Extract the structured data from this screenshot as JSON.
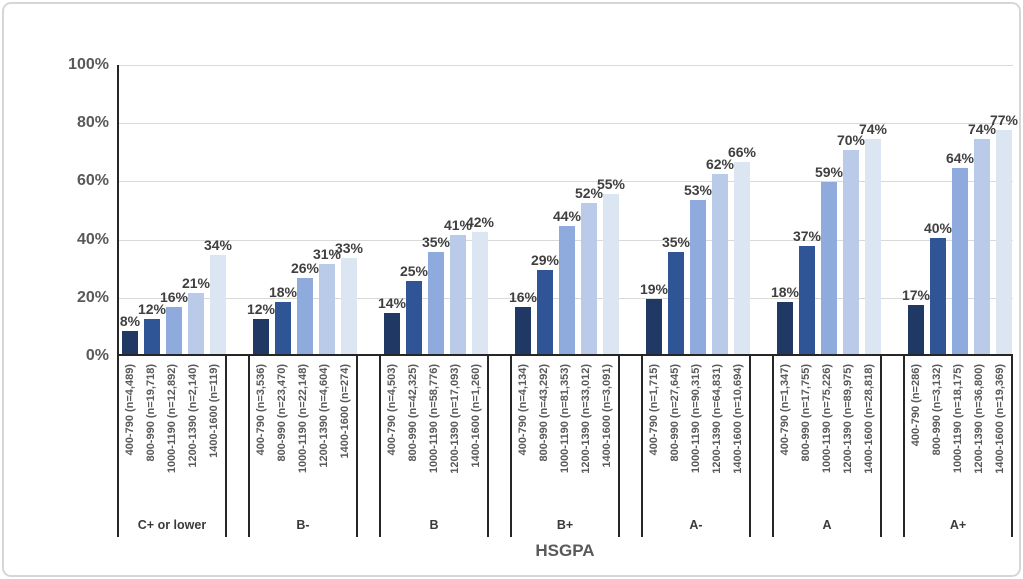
{
  "chart_data": {
    "type": "bar",
    "title": "",
    "xlabel": "HSGPA",
    "ylabel": "",
    "ylim": [
      0,
      100
    ],
    "ytick_values": [
      100,
      80,
      60,
      40,
      20,
      0
    ],
    "ytick_labels": [
      "100%",
      "80%",
      "60%",
      "40%",
      "20%",
      "0%"
    ],
    "grid": true,
    "legend_position": "none",
    "series_bands": [
      "400-790",
      "800-990",
      "1000-1190",
      "1200-1390",
      "1400-1600"
    ],
    "series_colors": [
      "#1F3864",
      "#2F5597",
      "#8FAADC",
      "#B9CBE8",
      "#DCE5F2"
    ],
    "axis_color": "#262626",
    "gridline_color": "#D9D9D9",
    "groups": [
      {
        "label": "C+ or lower",
        "bars": [
          {
            "category": "400-790 (n=4,489)",
            "value": 8,
            "value_label": "8%"
          },
          {
            "category": "800-990 (n=19,718)",
            "value": 12,
            "value_label": "12%"
          },
          {
            "category": "1000-1190 (n=12,892)",
            "value": 16,
            "value_label": "16%"
          },
          {
            "category": "1200-1390 (n=2,140)",
            "value": 21,
            "value_label": "21%"
          },
          {
            "category": "1400-1600 (n=119)",
            "value": 34,
            "value_label": "34%"
          }
        ]
      },
      {
        "label": "B-",
        "bars": [
          {
            "category": "400-790 (n=3,536)",
            "value": 12,
            "value_label": "12%"
          },
          {
            "category": "800-990 (n=23,470)",
            "value": 18,
            "value_label": "18%"
          },
          {
            "category": "1000-1190 (n=22,148)",
            "value": 26,
            "value_label": "26%"
          },
          {
            "category": "1200-1390 (n=4,604)",
            "value": 31,
            "value_label": "31%"
          },
          {
            "category": "1400-1600 (n=274)",
            "value": 33,
            "value_label": "33%"
          }
        ]
      },
      {
        "label": "B",
        "bars": [
          {
            "category": "400-790 (n=4,503)",
            "value": 14,
            "value_label": "14%"
          },
          {
            "category": "800-990 (n=42,325)",
            "value": 25,
            "value_label": "25%"
          },
          {
            "category": "1000-1190 (n=58,776)",
            "value": 35,
            "value_label": "35%"
          },
          {
            "category": "1200-1390 (n=17,093)",
            "value": 41,
            "value_label": "41%"
          },
          {
            "category": "1400-1600 (n=1,260)",
            "value": 42,
            "value_label": "42%"
          }
        ]
      },
      {
        "label": "B+",
        "bars": [
          {
            "category": "400-790 (n=4,134)",
            "value": 16,
            "value_label": "16%"
          },
          {
            "category": "800-990 (n=43,292)",
            "value": 29,
            "value_label": "29%"
          },
          {
            "category": "1000-1190 (n=81,353)",
            "value": 44,
            "value_label": "44%"
          },
          {
            "category": "1200-1390 (n=33,012)",
            "value": 52,
            "value_label": "52%"
          },
          {
            "category": "1400-1600 (n=3,091)",
            "value": 55,
            "value_label": "55%"
          }
        ]
      },
      {
        "label": "A-",
        "bars": [
          {
            "category": "400-790 (n=1,715)",
            "value": 19,
            "value_label": "19%"
          },
          {
            "category": "800-990 (n=27,645)",
            "value": 35,
            "value_label": "35%"
          },
          {
            "category": "1000-1190 (n=90,315)",
            "value": 53,
            "value_label": "53%"
          },
          {
            "category": "1200-1390 (n=64,831)",
            "value": 62,
            "value_label": "62%"
          },
          {
            "category": "1400-1600 (n=10,694)",
            "value": 66,
            "value_label": "66%"
          }
        ]
      },
      {
        "label": "A",
        "bars": [
          {
            "category": "400-790 (n=1,347)",
            "value": 18,
            "value_label": "18%"
          },
          {
            "category": "800-990 (n=17,755)",
            "value": 37,
            "value_label": "37%"
          },
          {
            "category": "1000-1190 (n=75,226)",
            "value": 59,
            "value_label": "59%"
          },
          {
            "category": "1200-1390 (n=89,975)",
            "value": 70,
            "value_label": "70%"
          },
          {
            "category": "1400-1600 (n=28,818)",
            "value": 74,
            "value_label": "74%"
          }
        ]
      },
      {
        "label": "A+",
        "bars": [
          {
            "category": "400-790 (n=286)",
            "value": 17,
            "value_label": "17%"
          },
          {
            "category": "800-990 (n=3,132)",
            "value": 40,
            "value_label": "40%"
          },
          {
            "category": "1000-1190 (n=18,175)",
            "value": 64,
            "value_label": "64%"
          },
          {
            "category": "1200-1390 (n=36,800)",
            "value": 74,
            "value_label": "74%"
          },
          {
            "category": "1400-1600 (n=19,369)",
            "value": 77,
            "value_label": "77%"
          }
        ]
      }
    ]
  }
}
